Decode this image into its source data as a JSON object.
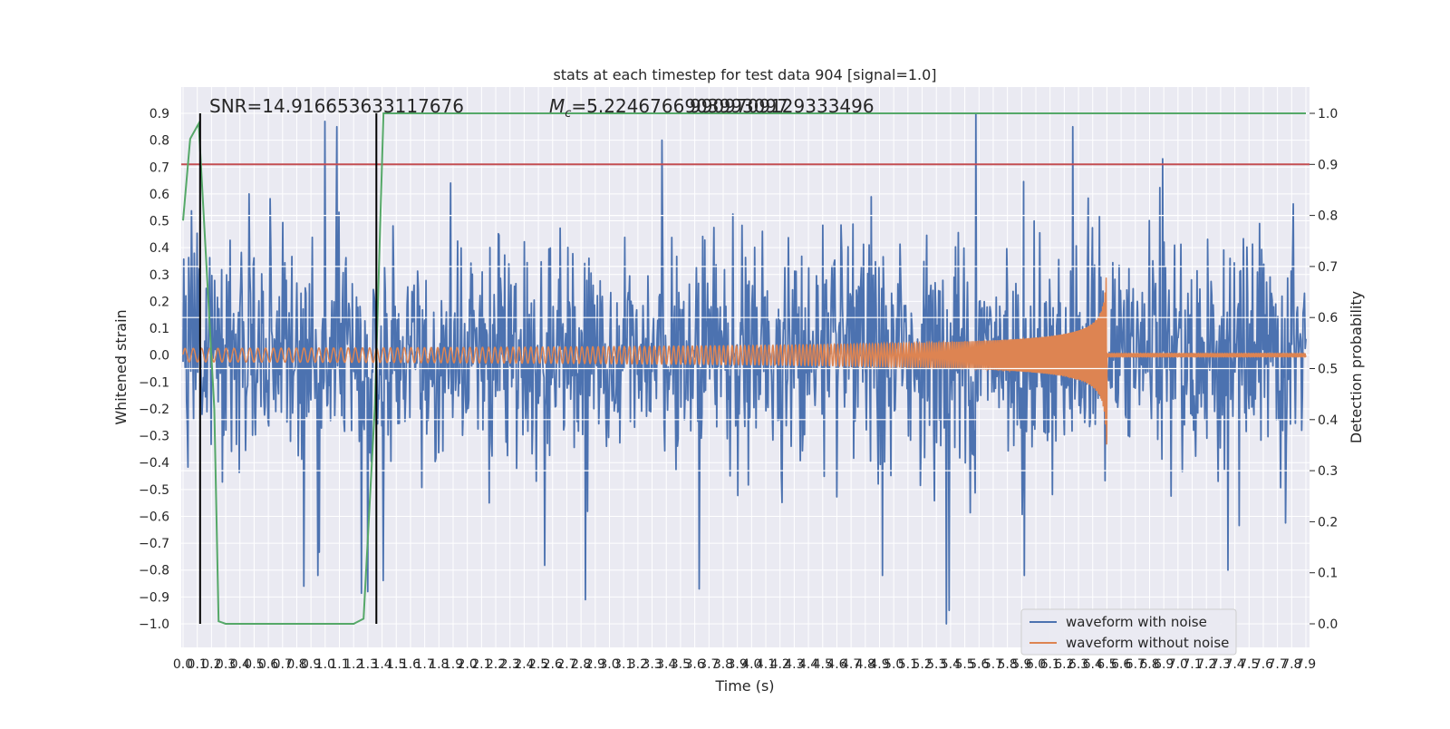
{
  "chart_data": {
    "type": "line",
    "title": "stats at each timestep for test data 904 [signal=1.0]",
    "xlabel": "Time (s)",
    "ylabel": "Whitened strain",
    "y2label": "Detection probability",
    "xlim": [
      0.0,
      7.9
    ],
    "ylim": [
      -1.0,
      0.9
    ],
    "y2lim": [
      0.0,
      1.0
    ],
    "x_tick_values": [
      0.0,
      0.1,
      0.2,
      0.3,
      0.4,
      0.5,
      0.6,
      0.7,
      0.8,
      0.9,
      1.0,
      1.1,
      1.2,
      1.3,
      1.4,
      1.5,
      1.6,
      1.7,
      1.8,
      1.9,
      2.0,
      2.1,
      2.2,
      2.3,
      2.4,
      2.5,
      2.6,
      2.7,
      2.8,
      2.9,
      3.0,
      3.1,
      3.2,
      3.3,
      3.4,
      3.5,
      3.6,
      3.7,
      3.8,
      3.9,
      4.0,
      4.1,
      4.2,
      4.3,
      4.4,
      4.5,
      4.6,
      4.7,
      4.8,
      4.9,
      5.0,
      5.1,
      5.2,
      5.3,
      5.4,
      5.5,
      5.6,
      5.7,
      5.8,
      5.9,
      6.0,
      6.1,
      6.2,
      6.3,
      6.4,
      6.5,
      6.6,
      6.7,
      6.8,
      6.9,
      7.0,
      7.1,
      7.2,
      7.3,
      7.4,
      7.5,
      7.6,
      7.7,
      7.8,
      7.9
    ],
    "x_tick_labels": [
      "0.0",
      "0.1",
      "0.2",
      "0.3",
      "0.4",
      "0.5",
      "0.6",
      "0.7",
      "0.8",
      "0.9",
      "1.0",
      "1.1",
      "1.2",
      "1.3",
      "1.4",
      "1.5",
      "1.6",
      "1.7",
      "1.8",
      "1.9",
      "2.0",
      "2.1",
      "2.2",
      "2.3",
      "2.4",
      "2.5",
      "2.6",
      "2.7",
      "2.8",
      "2.9",
      "3.0",
      "3.1",
      "3.2",
      "3.3",
      "3.4",
      "3.5",
      "3.6",
      "3.7",
      "3.8",
      "3.9",
      "4.0",
      "4.1",
      "4.2",
      "4.3",
      "4.4",
      "4.5",
      "4.6",
      "4.7",
      "4.8",
      "4.9",
      "5.0",
      "5.1",
      "5.2",
      "5.3",
      "5.4",
      "5.5",
      "5.6",
      "5.7",
      "5.8",
      "5.9",
      "6.0",
      "6.1",
      "6.2",
      "6.3",
      "6.4",
      "6.5",
      "6.6",
      "6.7",
      "6.8",
      "6.9",
      "7.0",
      "7.1",
      "7.2",
      "7.3",
      "7.4",
      "7.5",
      "7.6",
      "7.7",
      "7.8",
      "7.9"
    ],
    "y_tick_values": [
      -1.0,
      -0.9,
      -0.8,
      -0.7,
      -0.6,
      -0.5,
      -0.4,
      -0.3,
      -0.2,
      -0.1,
      0.0,
      0.1,
      0.2,
      0.3,
      0.4,
      0.5,
      0.6,
      0.7,
      0.8,
      0.9
    ],
    "y_tick_labels": [
      "−1.0",
      "−0.9",
      "−0.8",
      "−0.7",
      "−0.6",
      "−0.5",
      "−0.4",
      "−0.3",
      "−0.2",
      "−0.1",
      "0.0",
      "0.1",
      "0.2",
      "0.3",
      "0.4",
      "0.5",
      "0.6",
      "0.7",
      "0.8",
      "0.9"
    ],
    "y2_tick_values": [
      0.0,
      0.1,
      0.2,
      0.3,
      0.4,
      0.5,
      0.6,
      0.7,
      0.8,
      0.9,
      1.0
    ],
    "y2_tick_labels": [
      "0.0",
      "0.1",
      "0.2",
      "0.3",
      "0.4",
      "0.5",
      "0.6",
      "0.7",
      "0.8",
      "0.9",
      "1.0"
    ],
    "grid": true,
    "legend_position": "lower-right",
    "annotations": {
      "snr_text": "SNR=14.916653633117676",
      "mc_prefix": "M",
      "mc_sub": "c",
      "mc_value": "=5.2246766903993097",
      "mc_overlap": "9909709129333496"
    },
    "vertical_markers_x": [
      0.12,
      1.36
    ],
    "threshold": {
      "axis": "y2",
      "value": 0.9,
      "color": "#c44e52"
    },
    "series": [
      {
        "name": "waveform with noise",
        "axis": "y",
        "color": "#4c72b0",
        "kind": "noise",
        "sample_count": 1600,
        "envelope": {
          "std": 0.17,
          "clip": [
            -1.0,
            0.9
          ]
        },
        "extremes": [
          {
            "x": 1.0,
            "y": 0.87
          },
          {
            "x": 1.08,
            "y": 0.85
          },
          {
            "x": 5.58,
            "y": 0.9
          },
          {
            "x": 5.37,
            "y": -1.0
          },
          {
            "x": 0.85,
            "y": -0.86
          },
          {
            "x": 2.83,
            "y": -0.91
          },
          {
            "x": 1.3,
            "y": -0.88
          },
          {
            "x": 3.63,
            "y": -0.87
          },
          {
            "x": 5.39,
            "y": -0.95
          },
          {
            "x": 0.95,
            "y": -0.82
          },
          {
            "x": 4.92,
            "y": -0.82
          },
          {
            "x": 5.92,
            "y": -0.82
          },
          {
            "x": 7.35,
            "y": -0.8
          },
          {
            "x": 6.26,
            "y": 0.85
          },
          {
            "x": 3.37,
            "y": 0.8
          }
        ]
      },
      {
        "name": "waveform without noise",
        "axis": "y",
        "color": "#dd8452",
        "kind": "chirp",
        "start_amplitude": 0.025,
        "peak_amplitude": 0.34,
        "peak_time": 6.5,
        "start_frequency": 17,
        "end_frequency": 120,
        "ringdown_amplitude": 0.005
      },
      {
        "name": "Detection probability",
        "axis": "y2",
        "color": "#55a868",
        "kind": "line",
        "points": [
          {
            "x": 0.0,
            "y": 0.79
          },
          {
            "x": 0.05,
            "y": 0.95
          },
          {
            "x": 0.11,
            "y": 0.98
          },
          {
            "x": 0.22,
            "y": 0.42
          },
          {
            "x": 0.25,
            "y": 0.005
          },
          {
            "x": 0.3,
            "y": 0.0
          },
          {
            "x": 1.2,
            "y": 0.0
          },
          {
            "x": 1.27,
            "y": 0.01
          },
          {
            "x": 1.35,
            "y": 0.43
          },
          {
            "x": 1.41,
            "y": 1.0
          },
          {
            "x": 7.9,
            "y": 1.0
          }
        ]
      }
    ],
    "legend_entries": [
      "waveform with noise",
      "waveform without noise"
    ]
  }
}
